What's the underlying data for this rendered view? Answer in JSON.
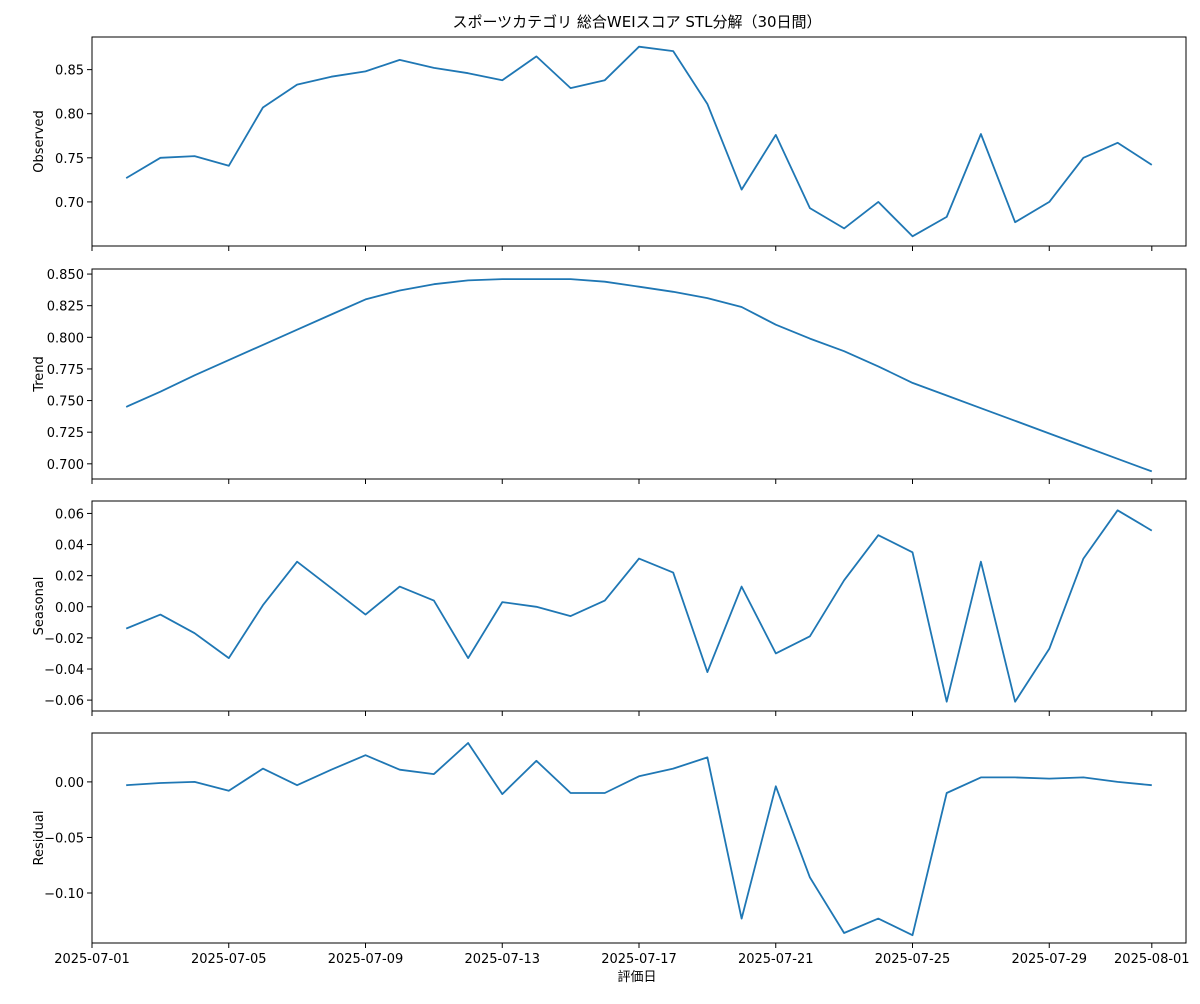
{
  "chart_data": {
    "type": "line",
    "title": "スポーツカテゴリ 総合WEIスコア STL分解（30日間）",
    "xlabel": "評価日",
    "x": [
      "2025-07-02",
      "2025-07-03",
      "2025-07-04",
      "2025-07-05",
      "2025-07-06",
      "2025-07-07",
      "2025-07-08",
      "2025-07-09",
      "2025-07-10",
      "2025-07-11",
      "2025-07-12",
      "2025-07-13",
      "2025-07-14",
      "2025-07-15",
      "2025-07-16",
      "2025-07-17",
      "2025-07-18",
      "2025-07-19",
      "2025-07-20",
      "2025-07-21",
      "2025-07-22",
      "2025-07-23",
      "2025-07-24",
      "2025-07-25",
      "2025-07-26",
      "2025-07-27",
      "2025-07-28",
      "2025-07-29",
      "2025-07-30",
      "2025-07-31",
      "2025-08-01"
    ],
    "xlim": [
      "2025-07-01",
      "2025-08-02"
    ],
    "x_ticks": [
      "2025-07-01",
      "2025-07-05",
      "2025-07-09",
      "2025-07-13",
      "2025-07-17",
      "2025-07-21",
      "2025-07-25",
      "2025-07-29",
      "2025-08-01"
    ],
    "line_color": "#1f77b4",
    "grid": false,
    "panels": [
      {
        "ylabel": "Observed",
        "ylim": [
          0.65,
          0.887
        ],
        "y_ticks": [
          "0.70",
          "0.75",
          "0.80",
          "0.85"
        ],
        "values": [
          0.727,
          0.75,
          0.752,
          0.741,
          0.807,
          0.833,
          0.842,
          0.848,
          0.861,
          0.852,
          0.846,
          0.838,
          0.865,
          0.829,
          0.838,
          0.876,
          0.871,
          0.811,
          0.714,
          0.776,
          0.693,
          0.67,
          0.7,
          0.661,
          0.683,
          0.777,
          0.677,
          0.7,
          0.75,
          0.767,
          0.742
        ]
      },
      {
        "ylabel": "Trend",
        "ylim": [
          0.688,
          0.854
        ],
        "y_ticks": [
          "0.700",
          "0.725",
          "0.750",
          "0.775",
          "0.800",
          "0.825",
          "0.850"
        ],
        "values": [
          0.745,
          0.757,
          0.77,
          0.782,
          0.794,
          0.806,
          0.818,
          0.83,
          0.837,
          0.842,
          0.845,
          0.846,
          0.846,
          0.846,
          0.844,
          0.84,
          0.836,
          0.831,
          0.824,
          0.81,
          0.799,
          0.789,
          0.777,
          0.764,
          0.754,
          0.744,
          0.734,
          0.724,
          0.714,
          0.704,
          0.694
        ]
      },
      {
        "ylabel": "Seasonal",
        "ylim": [
          -0.067,
          0.068
        ],
        "y_ticks": [
          "−0.06",
          "−0.04",
          "−0.02",
          "0.00",
          "0.02",
          "0.04",
          "0.06"
        ],
        "values": [
          -0.014,
          -0.005,
          -0.017,
          -0.033,
          0.001,
          0.029,
          0.012,
          -0.005,
          0.013,
          0.004,
          -0.033,
          0.003,
          0.0,
          -0.006,
          0.004,
          0.031,
          0.022,
          -0.042,
          0.013,
          -0.03,
          -0.019,
          0.017,
          0.046,
          0.035,
          -0.061,
          0.029,
          -0.061,
          -0.027,
          0.031,
          0.062,
          0.049
        ]
      },
      {
        "ylabel": "Residual",
        "ylim": [
          -0.145,
          0.044
        ],
        "y_ticks": [
          "−0.10",
          "−0.05",
          "0.00"
        ],
        "values": [
          -0.003,
          -0.001,
          0.0,
          -0.008,
          0.012,
          -0.003,
          0.011,
          0.024,
          0.011,
          0.007,
          0.035,
          -0.011,
          0.019,
          -0.01,
          -0.01,
          0.005,
          0.012,
          0.022,
          -0.123,
          -0.004,
          -0.086,
          -0.136,
          -0.123,
          -0.138,
          -0.01,
          0.004,
          0.004,
          0.003,
          0.004,
          0.0,
          -0.003
        ]
      }
    ]
  }
}
